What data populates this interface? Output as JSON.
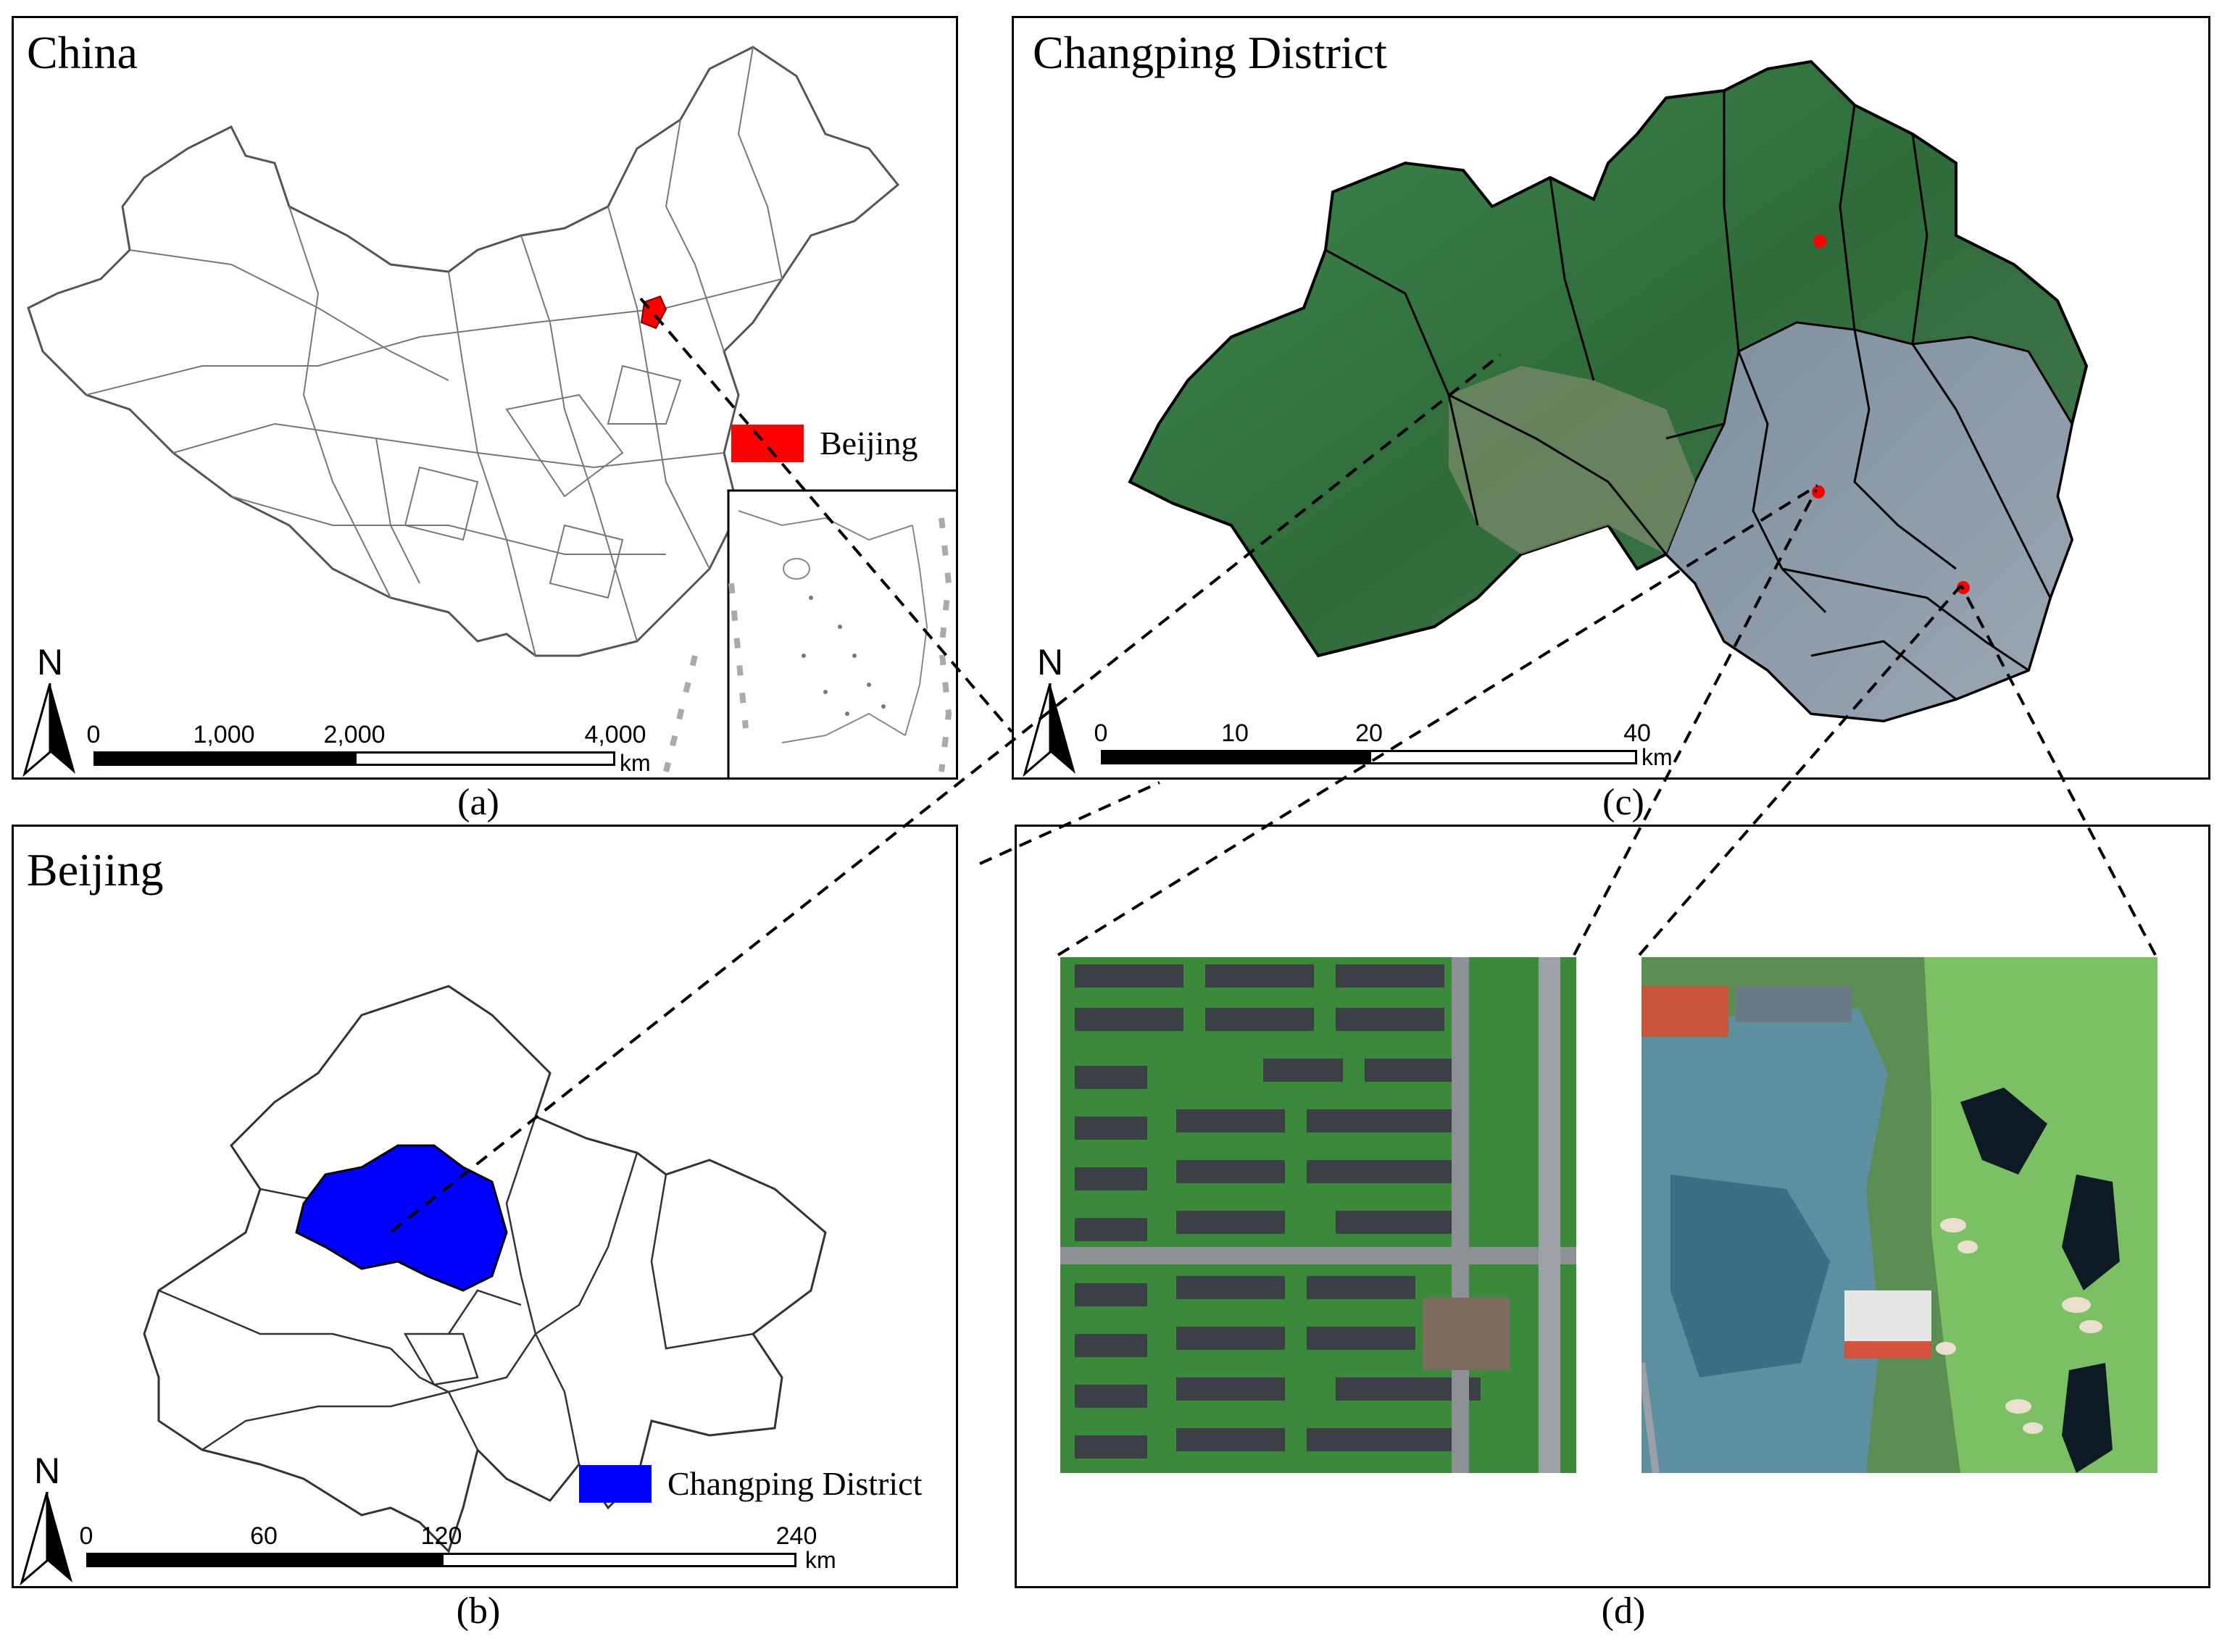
{
  "panels": {
    "a": {
      "title": "China",
      "caption": "(a)",
      "legend": {
        "label": "Beijing",
        "color": "#ff0000"
      },
      "scale": {
        "ticks": [
          "0",
          "1,000",
          "2,000",
          "4,000"
        ],
        "unit": "km"
      }
    },
    "b": {
      "title": "Beijing",
      "caption": "(b)",
      "legend": {
        "label": "Changping District",
        "color": "#0000ff"
      },
      "scale": {
        "ticks": [
          "0",
          "60",
          "120",
          "240"
        ],
        "unit": "km"
      }
    },
    "c": {
      "title": "Changping District",
      "caption": "(c)",
      "scale": {
        "ticks": [
          "0",
          "10",
          "20",
          "40"
        ],
        "unit": "km"
      }
    },
    "d": {
      "caption": "(d)"
    }
  },
  "north_arrow_label": "N",
  "colors": {
    "highlight_red": "#ff0000",
    "highlight_blue": "#0000ff",
    "vegetation": "#2f6b3a",
    "urban": "#8a98a8"
  }
}
